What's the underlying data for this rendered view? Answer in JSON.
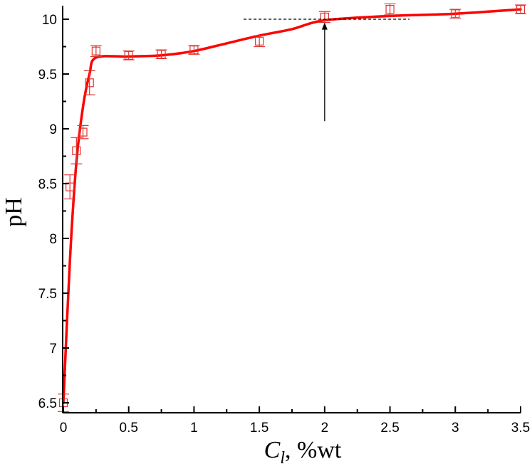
{
  "chart_data": {
    "type": "scatter",
    "xlabel": "C",
    "xlabel_sub": "l",
    "xlabel_suffix": ", %wt",
    "ylabel": "pH",
    "xlim": [
      0,
      3.5
    ],
    "ylim": [
      6.45,
      10.15
    ],
    "x_ticks": [
      0,
      0.5,
      1,
      1.5,
      2,
      2.5,
      3,
      3.5
    ],
    "x_tick_labels": [
      "0",
      "0.5",
      "1",
      "1.5",
      "2",
      "2.5",
      "3",
      "3.5"
    ],
    "y_ticks": [
      6.5,
      7,
      7.5,
      8,
      8.5,
      9,
      9.5,
      10
    ],
    "y_tick_labels": [
      "6.5",
      "7",
      "7.5",
      "8",
      "8.5",
      "9",
      "9.5",
      "10"
    ],
    "grid": false,
    "marker_color": "#e0342f",
    "fit_color": "#ff0000",
    "series": [
      {
        "kind": "measured",
        "marker": "square",
        "points": [
          {
            "x": 0.0,
            "y": 6.5,
            "err": 0.08
          },
          {
            "x": 0.05,
            "y": 8.47,
            "err": 0.11
          },
          {
            "x": 0.1,
            "y": 8.8,
            "err": 0.12
          },
          {
            "x": 0.15,
            "y": 8.97,
            "err": 0.06
          },
          {
            "x": 0.2,
            "y": 9.42,
            "err": 0.11
          },
          {
            "x": 0.25,
            "y": 9.71,
            "err": 0.05
          },
          {
            "x": 0.5,
            "y": 9.67,
            "err": 0.04
          },
          {
            "x": 0.75,
            "y": 9.68,
            "err": 0.04
          },
          {
            "x": 1.0,
            "y": 9.72,
            "err": 0.04
          },
          {
            "x": 1.5,
            "y": 9.8,
            "err": 0.05
          },
          {
            "x": 2.0,
            "y": 10.02,
            "err": 0.05
          },
          {
            "x": 2.5,
            "y": 10.09,
            "err": 0.05
          },
          {
            "x": 3.0,
            "y": 10.05,
            "err": 0.04
          },
          {
            "x": 3.5,
            "y": 10.09,
            "err": 0.04
          }
        ]
      },
      {
        "kind": "fit",
        "points": [
          {
            "x": 0.0,
            "y": 6.5
          },
          {
            "x": 0.05,
            "y": 7.8
          },
          {
            "x": 0.1,
            "y": 8.7
          },
          {
            "x": 0.15,
            "y": 9.2
          },
          {
            "x": 0.2,
            "y": 9.5
          },
          {
            "x": 0.25,
            "y": 9.65
          },
          {
            "x": 0.5,
            "y": 9.66
          },
          {
            "x": 0.75,
            "y": 9.67
          },
          {
            "x": 1.0,
            "y": 9.71
          },
          {
            "x": 1.25,
            "y": 9.78
          },
          {
            "x": 1.5,
            "y": 9.85
          },
          {
            "x": 1.75,
            "y": 9.91
          },
          {
            "x": 2.0,
            "y": 9.99
          },
          {
            "x": 2.5,
            "y": 10.03
          },
          {
            "x": 3.0,
            "y": 10.05
          },
          {
            "x": 3.5,
            "y": 10.09
          }
        ]
      }
    ],
    "annotations": [
      {
        "kind": "dashed-line",
        "x1": 1.38,
        "x2": 2.65,
        "y": 10.0
      },
      {
        "kind": "arrow",
        "x": 2.0,
        "y_from": 9.07,
        "y_to": 9.97
      }
    ]
  }
}
